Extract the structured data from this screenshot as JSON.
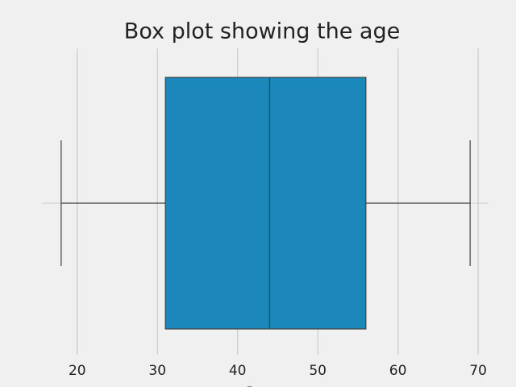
{
  "chart_data": {
    "type": "box",
    "title": "Box plot showing the age",
    "xlabel": "Age",
    "min": 18,
    "q1": 31,
    "median": 44,
    "q3": 56,
    "max": 69,
    "color": "#1c87bb",
    "xlim": [
      15.7,
      71.3
    ],
    "xticks": [
      20,
      30,
      40,
      50,
      60,
      70
    ],
    "grid": true
  }
}
